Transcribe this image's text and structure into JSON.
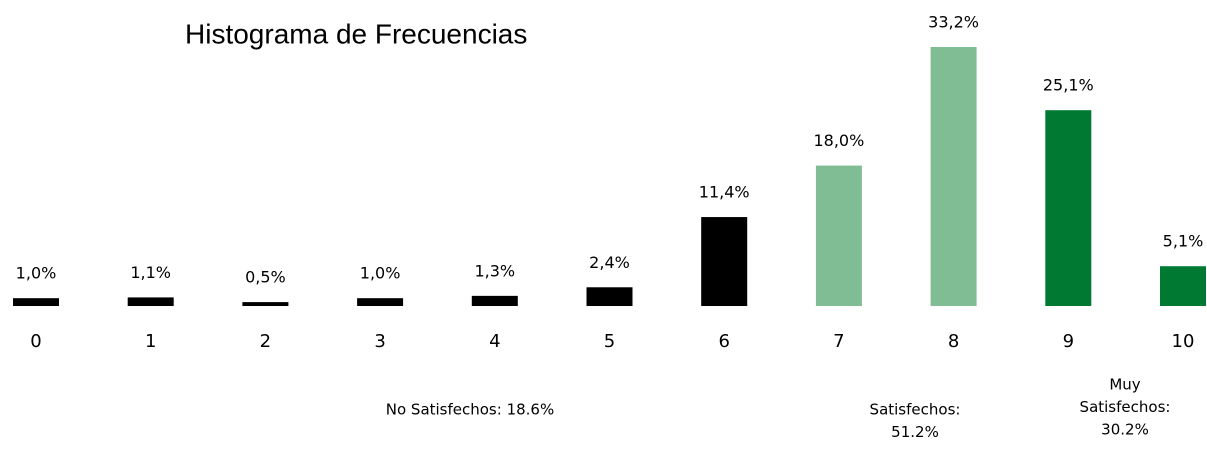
{
  "chart_data": {
    "type": "bar",
    "title": "Histograma de Frecuencias",
    "categories": [
      "0",
      "1",
      "2",
      "3",
      "4",
      "5",
      "6",
      "7",
      "8",
      "9",
      "10"
    ],
    "values": [
      1.0,
      1.1,
      0.5,
      1.0,
      1.3,
      2.4,
      11.4,
      18.0,
      33.2,
      25.1,
      5.1
    ],
    "value_labels": [
      "1,0%",
      "1,1%",
      "0,5%",
      "1,0%",
      "1,3%",
      "2,4%",
      "11,4%",
      "18,0%",
      "33,2%",
      "25,1%",
      "5,1%"
    ],
    "colors": [
      "#000000",
      "#000000",
      "#000000",
      "#000000",
      "#000000",
      "#000000",
      "#000000",
      "#80bc94",
      "#80bc94",
      "#007a33",
      "#007a33"
    ],
    "annotations": [
      {
        "lines": [
          "No Satisfechos: 18.6%"
        ]
      },
      {
        "lines": [
          "Satisfechos:",
          "51.2%"
        ]
      },
      {
        "lines": [
          "Muy",
          "Satisfechos:",
          "30.2%"
        ]
      }
    ]
  }
}
